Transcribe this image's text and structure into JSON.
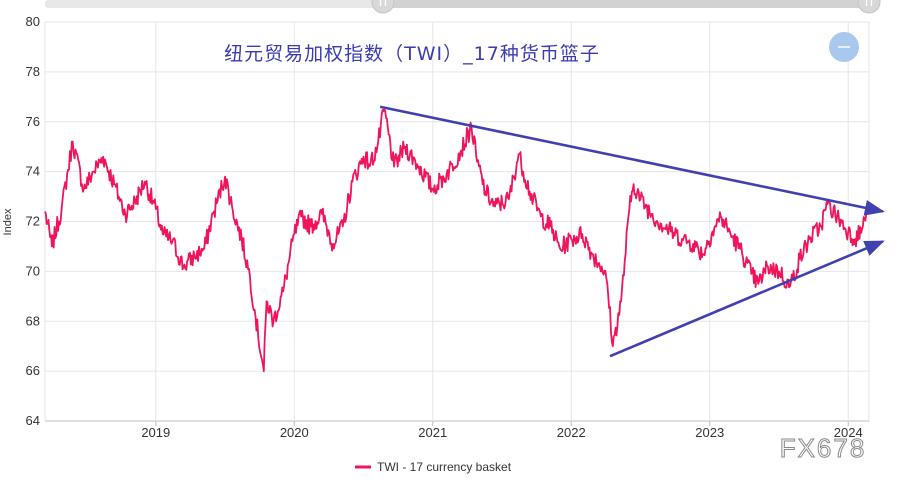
{
  "chart_data": {
    "type": "line",
    "title": "纽元贸易加权指数（TWI）_17种货币篮子",
    "ylabel": "Index",
    "xlabel": "",
    "ylim": [
      64,
      80
    ],
    "yticks": [
      64,
      66,
      68,
      70,
      72,
      74,
      76,
      78,
      80
    ],
    "xlim": [
      2018.2,
      2024.15
    ],
    "xticks": [
      {
        "label": "2019",
        "value": 2019.0
      },
      {
        "label": "2020",
        "value": 2020.0
      },
      {
        "label": "2021",
        "value": 2021.0
      },
      {
        "label": "2022",
        "value": 2022.0
      },
      {
        "label": "2023",
        "value": 2023.0
      },
      {
        "label": "2024",
        "value": 2024.0
      }
    ],
    "grid": true,
    "legend_position": "bottom-center",
    "series": [
      {
        "name": "TWI - 17 currency basket",
        "color": "#f0145a",
        "x": [
          2018.2,
          2018.25,
          2018.32,
          2018.4,
          2018.48,
          2018.55,
          2018.62,
          2018.7,
          2018.78,
          2018.85,
          2018.92,
          2019.0,
          2019.05,
          2019.12,
          2019.2,
          2019.28,
          2019.35,
          2019.42,
          2019.5,
          2019.55,
          2019.62,
          2019.68,
          2019.72,
          2019.78,
          2019.8,
          2019.85,
          2019.92,
          2020.0,
          2020.05,
          2020.12,
          2020.2,
          2020.28,
          2020.35,
          2020.42,
          2020.5,
          2020.55,
          2020.6,
          2020.65,
          2020.72,
          2020.8,
          2020.9,
          2021.0,
          2021.1,
          2021.2,
          2021.28,
          2021.32,
          2021.38,
          2021.45,
          2021.55,
          2021.62,
          2021.7,
          2021.78,
          2021.85,
          2021.92,
          2022.0,
          2022.08,
          2022.15,
          2022.22,
          2022.26,
          2022.3,
          2022.36,
          2022.42,
          2022.45,
          2022.5,
          2022.58,
          2022.65,
          2022.72,
          2022.8,
          2022.88,
          2022.95,
          2023.02,
          2023.08,
          2023.15,
          2023.22,
          2023.3,
          2023.35,
          2023.42,
          2023.5,
          2023.58,
          2023.65,
          2023.72,
          2023.8,
          2023.85,
          2023.92,
          2024.0,
          2024.05,
          2024.1,
          2024.13
        ],
        "values": [
          72.4,
          71.0,
          72.5,
          75.2,
          73.3,
          74.0,
          74.6,
          73.5,
          72.3,
          72.8,
          73.6,
          72.5,
          71.5,
          71.2,
          70.2,
          70.6,
          70.9,
          72.4,
          73.8,
          72.6,
          71.3,
          69.8,
          68.2,
          66.0,
          68.8,
          68.0,
          69.2,
          71.5,
          72.2,
          71.8,
          72.3,
          71.1,
          71.8,
          73.6,
          74.6,
          74.3,
          75.0,
          76.5,
          74.2,
          75.0,
          74.2,
          73.3,
          73.9,
          74.8,
          75.8,
          74.4,
          73.2,
          72.6,
          72.9,
          74.7,
          73.2,
          72.2,
          71.8,
          70.9,
          71.3,
          71.5,
          70.7,
          70.2,
          69.5,
          67.0,
          68.8,
          72.5,
          73.5,
          72.9,
          72.3,
          71.9,
          71.6,
          71.3,
          71.1,
          70.7,
          71.6,
          72.2,
          71.5,
          70.9,
          69.9,
          69.5,
          70.2,
          70.0,
          69.4,
          70.5,
          71.3,
          71.8,
          72.7,
          72.2,
          71.6,
          71.3,
          71.7,
          72.3
        ]
      }
    ],
    "annotations": [
      {
        "kind": "trend-arrow",
        "color": "#4040b0",
        "from": [
          2020.62,
          76.6
        ],
        "to": [
          2024.25,
          72.4
        ]
      },
      {
        "kind": "trend-arrow",
        "color": "#4040b0",
        "from": [
          2022.28,
          66.6
        ],
        "to": [
          2024.25,
          71.2
        ]
      }
    ]
  },
  "legend": {
    "label": "TWI - 17 currency basket"
  },
  "watermark": "FX678",
  "zoom_control": {
    "icon": "minus-icon"
  },
  "scrollbar": {
    "left_handle": "handle-left-icon",
    "right_handle": "handle-right-icon"
  }
}
